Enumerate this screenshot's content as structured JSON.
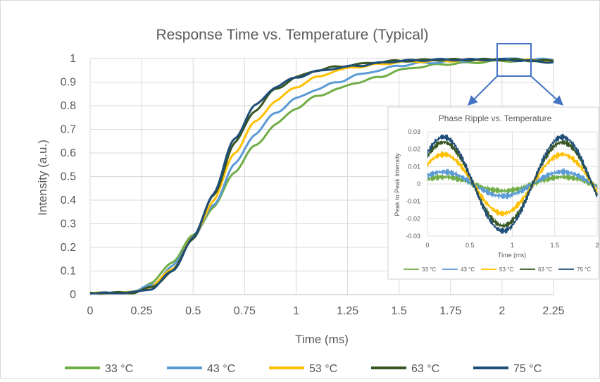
{
  "colors": {
    "c33": "#70ad47",
    "c43": "#5b9bd5",
    "c53": "#ffc000",
    "c63": "#375623",
    "c75": "#1f4e79",
    "callout": "#4472c4",
    "grid": "#d9d9d9",
    "text": "#595959"
  },
  "chart_data": [
    {
      "type": "line",
      "title": "Response Time vs. Temperature (Typical)",
      "xlabel": "Time (ms)",
      "ylabel": "Intensity (a.u.)",
      "xlim": [
        0,
        2.25
      ],
      "ylim": [
        0,
        1
      ],
      "x_ticks": [
        "0",
        "0.25",
        "0.5",
        "0.75",
        "1",
        "1.25",
        "1.5",
        "1.75",
        "2",
        "2.25"
      ],
      "y_ticks": [
        "0",
        "0.1",
        "0.2",
        "0.3",
        "0.4",
        "0.5",
        "0.6",
        "0.7",
        "0.8",
        "0.9",
        "1"
      ],
      "grid": true,
      "legend": "bottom",
      "series": [
        {
          "name": "33 °C",
          "color_key": "c33",
          "points": [
            [
              0,
              0.005
            ],
            [
              0.2,
              0.008
            ],
            [
              0.3,
              0.05
            ],
            [
              0.4,
              0.14
            ],
            [
              0.5,
              0.25
            ],
            [
              0.6,
              0.37
            ],
            [
              0.7,
              0.52
            ],
            [
              0.8,
              0.63
            ],
            [
              0.9,
              0.72
            ],
            [
              1.0,
              0.79
            ],
            [
              1.1,
              0.84
            ],
            [
              1.2,
              0.87
            ],
            [
              1.3,
              0.9
            ],
            [
              1.4,
              0.92
            ],
            [
              1.5,
              0.95
            ],
            [
              1.6,
              0.965
            ],
            [
              1.7,
              0.975
            ],
            [
              1.8,
              0.98
            ],
            [
              2.0,
              0.99
            ],
            [
              2.25,
              0.99
            ]
          ]
        },
        {
          "name": "43 °C",
          "color_key": "c43",
          "points": [
            [
              0,
              0.005
            ],
            [
              0.2,
              0.008
            ],
            [
              0.3,
              0.04
            ],
            [
              0.4,
              0.12
            ],
            [
              0.5,
              0.24
            ],
            [
              0.6,
              0.38
            ],
            [
              0.7,
              0.55
            ],
            [
              0.8,
              0.68
            ],
            [
              0.9,
              0.77
            ],
            [
              1.0,
              0.83
            ],
            [
              1.1,
              0.87
            ],
            [
              1.2,
              0.9
            ],
            [
              1.3,
              0.93
            ],
            [
              1.4,
              0.95
            ],
            [
              1.5,
              0.97
            ],
            [
              1.6,
              0.98
            ],
            [
              1.8,
              0.99
            ],
            [
              2.0,
              1.0
            ],
            [
              2.25,
              0.995
            ]
          ]
        },
        {
          "name": "53 °C",
          "color_key": "c53",
          "points": [
            [
              0,
              0.005
            ],
            [
              0.2,
              0.008
            ],
            [
              0.3,
              0.035
            ],
            [
              0.4,
              0.11
            ],
            [
              0.5,
              0.24
            ],
            [
              0.6,
              0.4
            ],
            [
              0.7,
              0.6
            ],
            [
              0.8,
              0.73
            ],
            [
              0.9,
              0.82
            ],
            [
              1.0,
              0.88
            ],
            [
              1.1,
              0.92
            ],
            [
              1.2,
              0.95
            ],
            [
              1.3,
              0.965
            ],
            [
              1.4,
              0.975
            ],
            [
              1.5,
              0.985
            ],
            [
              1.7,
              0.99
            ],
            [
              2.0,
              0.995
            ],
            [
              2.25,
              0.99
            ]
          ]
        },
        {
          "name": "63 °C",
          "color_key": "c63",
          "points": [
            [
              0,
              0.005
            ],
            [
              0.2,
              0.008
            ],
            [
              0.3,
              0.03
            ],
            [
              0.4,
              0.1
            ],
            [
              0.5,
              0.24
            ],
            [
              0.6,
              0.42
            ],
            [
              0.7,
              0.64
            ],
            [
              0.8,
              0.78
            ],
            [
              0.9,
              0.87
            ],
            [
              1.0,
              0.92
            ],
            [
              1.1,
              0.95
            ],
            [
              1.2,
              0.965
            ],
            [
              1.3,
              0.975
            ],
            [
              1.4,
              0.985
            ],
            [
              1.5,
              0.99
            ],
            [
              1.7,
              0.995
            ],
            [
              2.0,
              0.995
            ],
            [
              2.25,
              0.99
            ]
          ]
        },
        {
          "name": "75 °C",
          "color_key": "c75",
          "points": [
            [
              0,
              0.005
            ],
            [
              0.2,
              0.008
            ],
            [
              0.3,
              0.025
            ],
            [
              0.4,
              0.1
            ],
            [
              0.5,
              0.24
            ],
            [
              0.6,
              0.43
            ],
            [
              0.7,
              0.66
            ],
            [
              0.8,
              0.8
            ],
            [
              0.9,
              0.88
            ],
            [
              1.0,
              0.92
            ],
            [
              1.1,
              0.945
            ],
            [
              1.2,
              0.96
            ],
            [
              1.3,
              0.97
            ],
            [
              1.4,
              0.98
            ],
            [
              1.5,
              0.99
            ],
            [
              1.7,
              0.995
            ],
            [
              2.0,
              0.995
            ],
            [
              2.25,
              0.985
            ]
          ]
        }
      ]
    },
    {
      "type": "line",
      "title": "Phase Ripple vs. Temperature",
      "xlabel": "Time (ms)",
      "ylabel": "Peak to Peak Intensity",
      "xlim": [
        0,
        2
      ],
      "ylim": [
        -0.03,
        0.03
      ],
      "x_ticks": [
        "0",
        "0.5",
        "1",
        "1.5",
        "2"
      ],
      "y_ticks": [
        "-0.03",
        "-0.02",
        "-0.01",
        "0",
        "0.01",
        "0.02",
        "0.03"
      ],
      "grid": true,
      "legend": "bottom",
      "series": [
        {
          "name": "33 °C",
          "color_key": "c33",
          "amplitude": 0.004
        },
        {
          "name": "43 °C",
          "color_key": "c43",
          "amplitude": 0.007
        },
        {
          "name": "53 °C",
          "color_key": "c53",
          "amplitude": 0.017
        },
        {
          "name": "63 °C",
          "color_key": "c63",
          "amplitude": 0.024
        },
        {
          "name": "75 °C",
          "color_key": "c75",
          "amplitude": 0.027
        }
      ]
    }
  ]
}
